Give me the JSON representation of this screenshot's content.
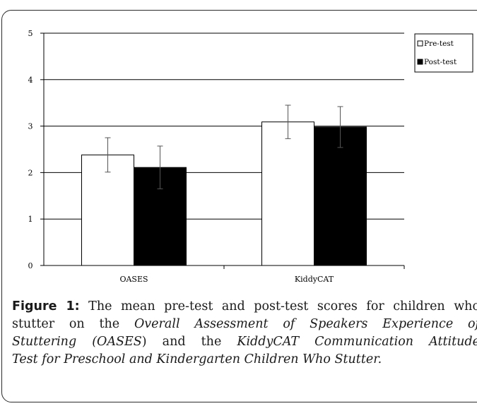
{
  "chart_data": {
    "type": "bar",
    "categories": [
      "OASES",
      "KiddyCAT"
    ],
    "series": [
      {
        "name": "Pre-test",
        "values": [
          2.38,
          3.09
        ],
        "error": [
          0.37,
          0.36
        ],
        "color": "#ffffff"
      },
      {
        "name": "Post-test",
        "values": [
          2.11,
          2.98
        ],
        "error": [
          0.46,
          0.44
        ],
        "color": "#000000"
      }
    ],
    "ylim": [
      0,
      5
    ],
    "yticks": [
      0,
      1,
      2,
      3,
      4,
      5
    ],
    "grid": true,
    "legend_position": "top-right"
  },
  "caption": {
    "label": "Figure 1:",
    "line1_text": " The mean pre-test and post-test scores for children who",
    "line2_prefix": "stutter on the ",
    "line2_italic": "Overall Assessment of Speakers Experience of",
    "line3_italic_a": "Stuttering (OASES",
    "line3_mid": ") and the ",
    "line3_italic_b": "KiddyCAT Communication Attitude",
    "line4_italic": "Test for Preschool and Kindergarten Children Who Stutter."
  }
}
